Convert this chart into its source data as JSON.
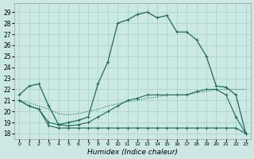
{
  "xlabel": "Humidex (Indice chaleur)",
  "bg_color": "#cce8e4",
  "grid_color": "#aacfcb",
  "line_color": "#1a6b5a",
  "ylim": [
    17.5,
    29.8
  ],
  "yticks": [
    18,
    19,
    20,
    21,
    22,
    23,
    24,
    25,
    26,
    27,
    28,
    29
  ],
  "x_labels": [
    "0",
    "1",
    "2",
    "3",
    "4",
    "5",
    "6",
    "7",
    "8",
    "9",
    "10",
    "11",
    "12",
    "13",
    "14",
    "15",
    "16",
    "17",
    "18",
    "19",
    "20",
    "21",
    "22",
    "23"
  ],
  "series_main": [
    21.5,
    22.3,
    22.5,
    20.5,
    18.8,
    19.0,
    19.2,
    19.5,
    22.5,
    24.5,
    28.0,
    28.3,
    28.8,
    29.0,
    28.5,
    28.7,
    27.2,
    27.2,
    26.5,
    25.0,
    22.3,
    22.2,
    21.5,
    18.0
  ],
  "series_dotted": [
    21.0,
    20.8,
    20.5,
    20.2,
    19.8,
    19.7,
    19.8,
    20.0,
    20.2,
    20.5,
    20.7,
    20.9,
    21.0,
    21.2,
    21.3,
    21.5,
    21.5,
    21.5,
    21.7,
    21.8,
    22.0,
    22.0,
    22.0,
    22.0
  ],
  "series_mid": [
    21.0,
    20.5,
    20.2,
    19.0,
    18.8,
    18.7,
    18.8,
    19.0,
    19.5,
    20.0,
    20.5,
    21.0,
    21.2,
    21.5,
    21.5,
    21.5,
    21.5,
    21.5,
    21.8,
    22.0,
    22.0,
    21.5,
    19.5,
    18.0
  ],
  "series_flat": [
    21.0,
    20.5,
    20.2,
    18.7,
    18.5,
    18.5,
    18.5,
    18.5,
    18.5,
    18.5,
    18.5,
    18.5,
    18.5,
    18.5,
    18.5,
    18.5,
    18.5,
    18.5,
    18.5,
    18.5,
    18.5,
    18.5,
    18.5,
    18.0
  ]
}
